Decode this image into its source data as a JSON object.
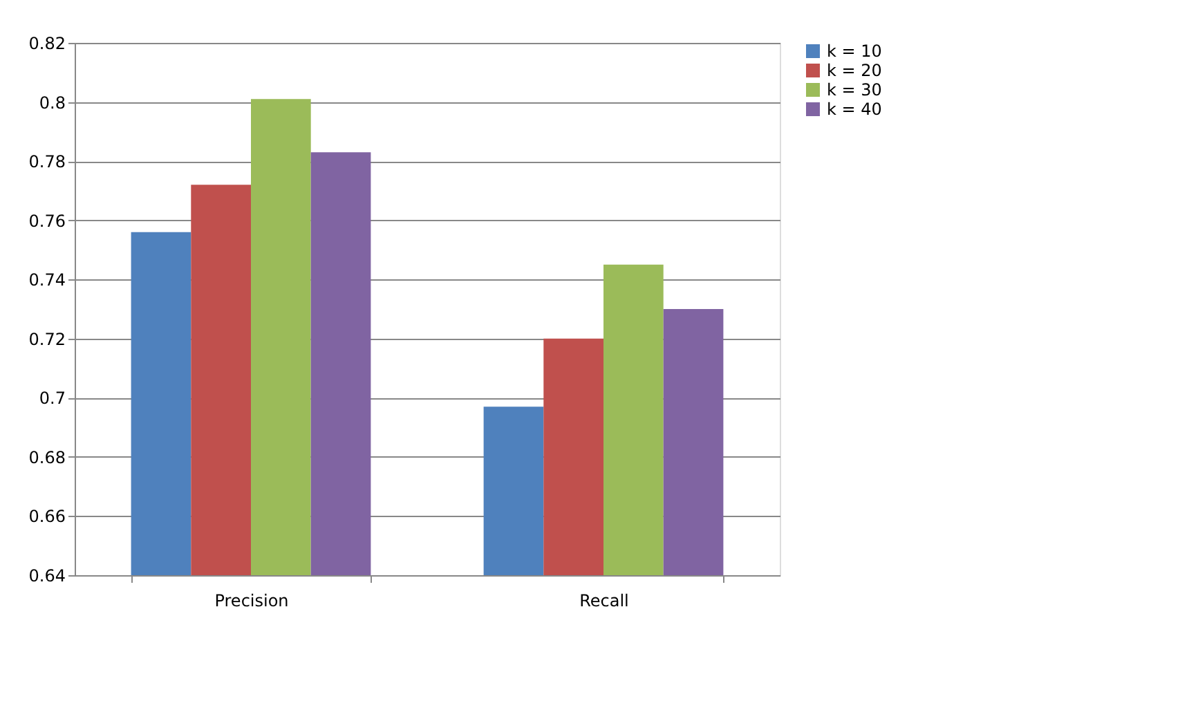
{
  "chart_data": {
    "type": "bar",
    "categories": [
      "Precision",
      "Recall"
    ],
    "series": [
      {
        "name": "k = 10",
        "color": "#4f81bd",
        "values": [
          0.756,
          0.697
        ]
      },
      {
        "name": "k = 20",
        "color": "#c0504d",
        "values": [
          0.772,
          0.72
        ]
      },
      {
        "name": "k = 30",
        "color": "#9bbb59",
        "values": [
          0.801,
          0.745
        ]
      },
      {
        "name": "k = 40",
        "color": "#8064a2",
        "values": [
          0.783,
          0.73
        ]
      }
    ],
    "ylim": [
      0.64,
      0.82
    ],
    "yticks": [
      0.64,
      0.66,
      0.68,
      0.7,
      0.72,
      0.74,
      0.76,
      0.78,
      0.8,
      0.82
    ],
    "grid": "y",
    "legend": "right"
  }
}
